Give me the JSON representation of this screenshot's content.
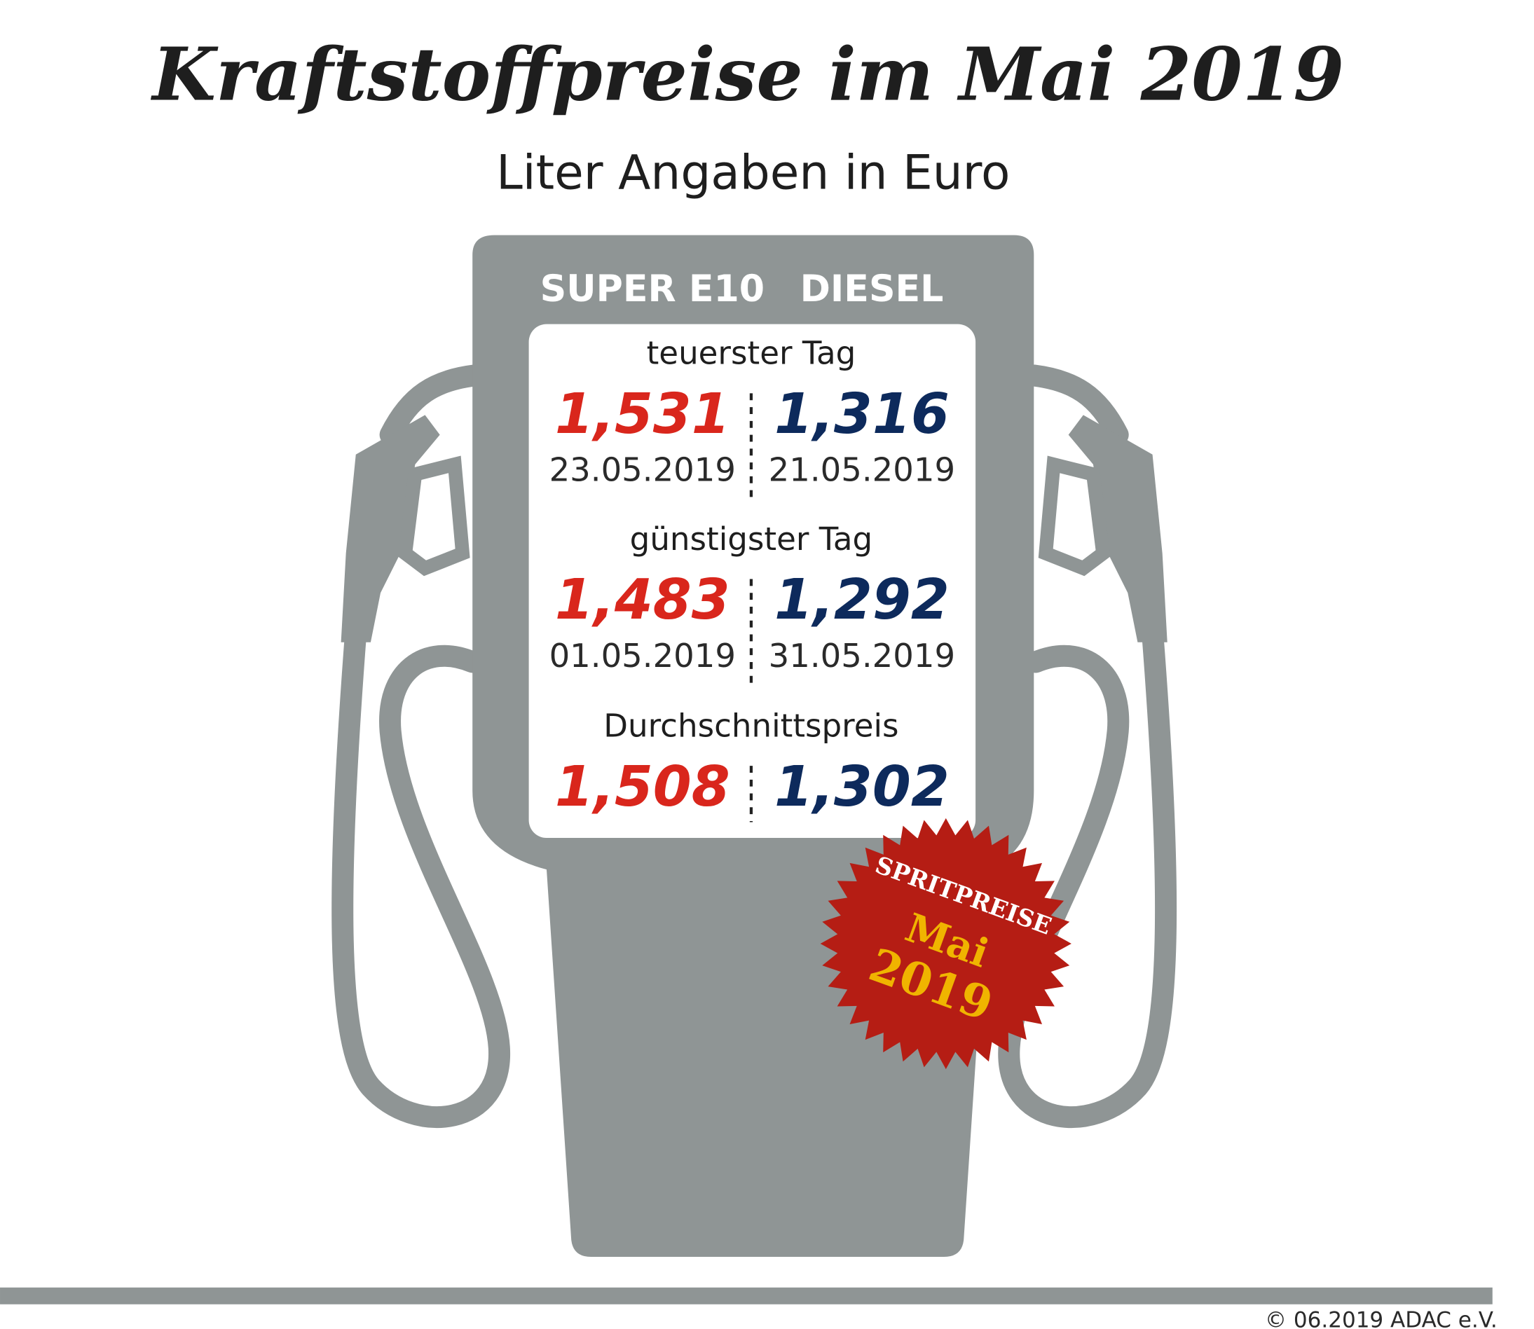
{
  "header": {
    "title": "Kraftstoffpreise im Mai 2019",
    "subtitle": "Liter Angaben in Euro"
  },
  "columns": [
    "SUPER E10",
    "DIESEL"
  ],
  "sections": [
    {
      "label": "teuerster Tag",
      "values": [
        "1,531",
        "1,316"
      ],
      "dates": [
        "23.05.2019",
        "21.05.2019"
      ]
    },
    {
      "label": "günstigster Tag",
      "values": [
        "1,483",
        "1,292"
      ],
      "dates": [
        "01.05.2019",
        "31.05.2019"
      ]
    },
    {
      "label": "Durchschnittspreis",
      "values": [
        "1,508",
        "1,302"
      ]
    }
  ],
  "badge": {
    "lines": [
      "SPRITPREISE",
      "Mai",
      "2019"
    ]
  },
  "footer": "© 06.2019  ADAC e.V."
}
